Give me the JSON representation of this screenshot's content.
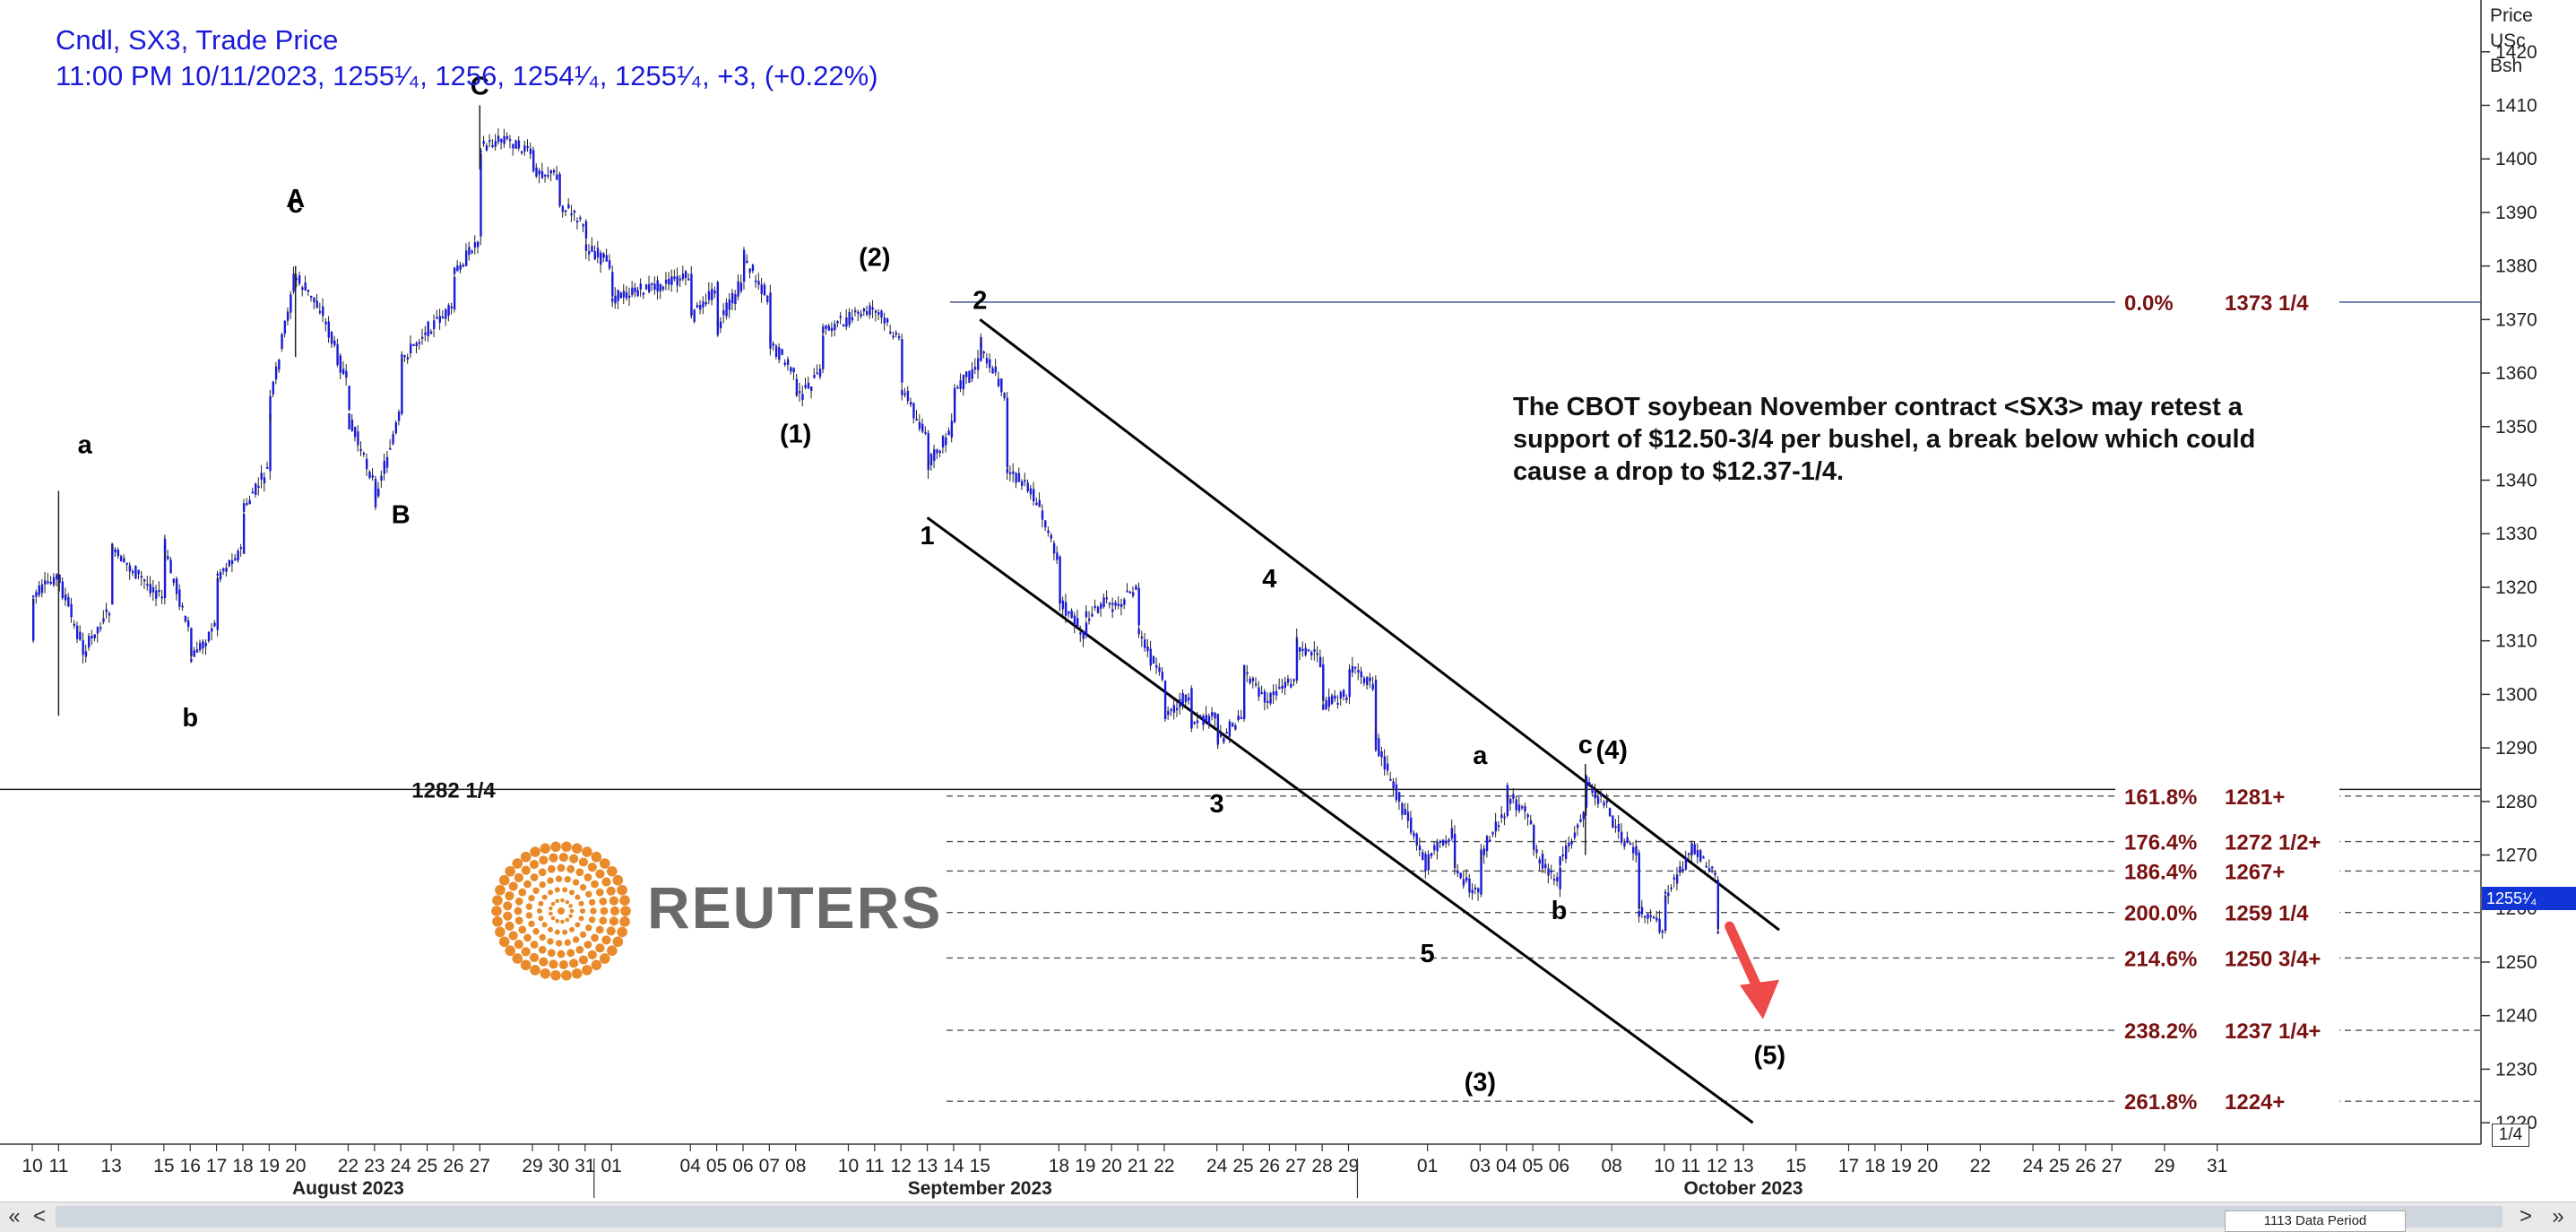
{
  "header": {
    "title": "Cndl, SX3, Trade Price",
    "ohlc_line": "11:00 PM 10/11/2023, 1255¹⁄₄, 1256, 1254¹⁄₄, 1255¹⁄₄, +3, (+0.22%)"
  },
  "note": "The CBOT soybean November contract <SX3> may retest a support of $12.50-3/4 per bushel, a break below which could cause a drop to $12.37-1/4.",
  "logo": {
    "word": "REUTERS",
    "dot_color": "#e98a2b"
  },
  "price_axis_title": [
    "Price",
    "USc",
    "Bsh"
  ],
  "current_price_label": "1255¹⁄₄",
  "zoom_label": "1/4",
  "scrollbar": {
    "first_icon": "double-left-arrow-icon",
    "first_glyph": "«",
    "left_glyph": "<",
    "right_glyph": ">",
    "last_glyph": "»",
    "periods_label": "1113 Data Period"
  },
  "colors": {
    "candle": "#1a1ad8",
    "fib": "#7a1212",
    "arrow": "#ee4a4a",
    "channel": "#000000"
  },
  "chart_data": {
    "type": "candlestick",
    "y_ticks": [
      1220,
      1230,
      1240,
      1250,
      1260,
      1270,
      1280,
      1290,
      1300,
      1310,
      1320,
      1330,
      1340,
      1350,
      1360,
      1370,
      1380,
      1390,
      1400,
      1410,
      1420
    ],
    "ylim": [
      1216,
      1428
    ],
    "x_ticks": [
      "10",
      "11",
      "13",
      "15",
      "16",
      "17",
      "18",
      "19",
      "20",
      "22",
      "23",
      "24",
      "25",
      "26",
      "27",
      "29",
      "30",
      "31",
      "01",
      "04",
      "05",
      "06",
      "07",
      "08",
      "10",
      "11",
      "12",
      "13",
      "14",
      "15",
      "18",
      "19",
      "20",
      "21",
      "22",
      "24",
      "25",
      "26",
      "27",
      "28",
      "29",
      "01",
      "03",
      "04",
      "05",
      "06",
      "08",
      "10",
      "11",
      "12",
      "13",
      "15",
      "17",
      "18",
      "19",
      "20",
      "22",
      "24",
      "25",
      "26",
      "27",
      "29",
      "31"
    ],
    "x_tick_dates": [
      "2023-07-10",
      "2023-07-11",
      "2023-07-13",
      "2023-07-15",
      "2023-07-16",
      "2023-07-17",
      "2023-07-18",
      "2023-07-19",
      "2023-07-20",
      "2023-07-22",
      "2023-07-23",
      "2023-07-24",
      "2023-07-25",
      "2023-07-26",
      "2023-07-27",
      "2023-07-29",
      "2023-07-30",
      "2023-07-31",
      "2023-08-01",
      "2023-08-04",
      "2023-08-05",
      "2023-08-06",
      "2023-08-07",
      "2023-08-08",
      "2023-08-10",
      "2023-08-11",
      "2023-08-12",
      "2023-08-13",
      "2023-08-14",
      "2023-08-15",
      "2023-08-18",
      "2023-08-19",
      "2023-08-20",
      "2023-08-21",
      "2023-08-22",
      "2023-08-24",
      "2023-08-25",
      "2023-08-26",
      "2023-08-27",
      "2023-08-28",
      "2023-08-29",
      "2023-09-01",
      "2023-09-03",
      "2023-09-04",
      "2023-09-05",
      "2023-09-06",
      "2023-09-08",
      "2023-09-10",
      "2023-09-11",
      "2023-09-12",
      "2023-09-13",
      "2023-09-15",
      "2023-09-17",
      "2023-09-18",
      "2023-09-19",
      "2023-09-20",
      "2023-09-22",
      "2023-09-24",
      "2023-09-25",
      "2023-09-26",
      "2023-09-27",
      "2023-09-29",
      "2023-09-31"
    ],
    "month_labels": [
      {
        "text": "August 2023",
        "date": "2023-07-22"
      },
      {
        "text": "September 2023",
        "date": "2023-08-15"
      },
      {
        "text": "October 2023",
        "date": "2023-09-13"
      }
    ],
    "month_dividers": [
      "2023-07-31",
      "2023-08-29"
    ],
    "price_path": [
      [
        "2023-07-10",
        1310
      ],
      [
        "2023-07-10",
        1318
      ],
      [
        "2023-07-11",
        1322
      ],
      [
        "2023-07-12",
        1308
      ],
      [
        "2023-07-13",
        1316
      ],
      [
        "2023-07-13",
        1327
      ],
      [
        "2023-07-15",
        1318
      ],
      [
        "2023-07-15",
        1328
      ],
      [
        "2023-07-16",
        1312
      ],
      [
        "2023-07-16",
        1306
      ],
      [
        "2023-07-17",
        1313
      ],
      [
        "2023-07-17",
        1322
      ],
      [
        "2023-07-18",
        1327
      ],
      [
        "2023-07-18",
        1334
      ],
      [
        "2023-07-19",
        1342
      ],
      [
        "2023-07-19",
        1352
      ],
      [
        "2023-07-20",
        1378
      ],
      [
        "2023-07-21",
        1372
      ],
      [
        "2023-07-22",
        1358
      ],
      [
        "2023-07-22",
        1352
      ],
      [
        "2023-07-23",
        1340
      ],
      [
        "2023-07-23",
        1336
      ],
      [
        "2023-07-24",
        1352
      ],
      [
        "2023-07-24",
        1362
      ],
      [
        "2023-07-25",
        1368
      ],
      [
        "2023-07-26",
        1372
      ],
      [
        "2023-07-26",
        1378
      ],
      [
        "2023-07-27",
        1385
      ],
      [
        "2023-07-27",
        1402
      ],
      [
        "2023-07-28",
        1404
      ],
      [
        "2023-07-29",
        1401
      ],
      [
        "2023-07-29",
        1398
      ],
      [
        "2023-07-30",
        1397
      ],
      [
        "2023-07-30",
        1392
      ],
      [
        "2023-07-31",
        1388
      ],
      [
        "2023-07-31",
        1384
      ],
      [
        "2023-08-01",
        1380
      ],
      [
        "2023-08-01",
        1374
      ],
      [
        "2023-08-04",
        1378
      ],
      [
        "2023-08-04",
        1370
      ],
      [
        "2023-08-05",
        1376
      ],
      [
        "2023-08-05",
        1368
      ],
      [
        "2023-08-06",
        1377
      ],
      [
        "2023-08-06",
        1382
      ],
      [
        "2023-08-07",
        1374
      ],
      [
        "2023-08-07",
        1366
      ],
      [
        "2023-08-08",
        1360
      ],
      [
        "2023-08-08",
        1355
      ],
      [
        "2023-08-09",
        1360
      ],
      [
        "2023-08-09",
        1368
      ],
      [
        "2023-08-10",
        1370
      ],
      [
        "2023-08-11",
        1372
      ],
      [
        "2023-08-12",
        1366
      ],
      [
        "2023-08-12",
        1358
      ],
      [
        "2023-08-13",
        1348
      ],
      [
        "2023-08-13",
        1342
      ],
      [
        "2023-08-14",
        1350
      ],
      [
        "2023-08-14",
        1356
      ],
      [
        "2023-08-15",
        1362
      ],
      [
        "2023-08-15",
        1366
      ],
      [
        "2023-08-16",
        1356
      ],
      [
        "2023-08-16",
        1342
      ],
      [
        "2023-08-17",
        1338
      ],
      [
        "2023-08-18",
        1326
      ],
      [
        "2023-08-18",
        1318
      ],
      [
        "2023-08-19",
        1311
      ],
      [
        "2023-08-19",
        1314
      ],
      [
        "2023-08-20",
        1318
      ],
      [
        "2023-08-20",
        1316
      ],
      [
        "2023-08-21",
        1320
      ],
      [
        "2023-08-21",
        1312
      ],
      [
        "2023-08-22",
        1302
      ],
      [
        "2023-08-22",
        1296
      ],
      [
        "2023-08-23",
        1300
      ],
      [
        "2023-08-23",
        1294
      ],
      [
        "2023-08-24",
        1296
      ],
      [
        "2023-08-24",
        1291
      ],
      [
        "2023-08-25",
        1296
      ],
      [
        "2023-08-25",
        1305
      ],
      [
        "2023-08-26",
        1298
      ],
      [
        "2023-08-26",
        1300
      ],
      [
        "2023-08-27",
        1303
      ],
      [
        "2023-08-27",
        1310
      ],
      [
        "2023-08-28",
        1306
      ],
      [
        "2023-08-28",
        1298
      ],
      [
        "2023-08-29",
        1300
      ],
      [
        "2023-08-29",
        1305
      ],
      [
        "2023-08-30",
        1302
      ],
      [
        "2023-08-30",
        1292
      ],
      [
        "2023-09-01",
        1268
      ],
      [
        "2023-09-01",
        1270
      ],
      [
        "2023-09-02",
        1274
      ],
      [
        "2023-09-02",
        1268
      ],
      [
        "2023-09-03",
        1262
      ],
      [
        "2023-09-03",
        1270
      ],
      [
        "2023-09-04",
        1278
      ],
      [
        "2023-09-04",
        1282
      ],
      [
        "2023-09-05",
        1276
      ],
      [
        "2023-09-05",
        1272
      ],
      [
        "2023-09-06",
        1264
      ],
      [
        "2023-09-06",
        1268
      ],
      [
        "2023-09-07",
        1278
      ],
      [
        "2023-09-07",
        1284
      ],
      [
        "2023-09-08",
        1278
      ],
      [
        "2023-09-08",
        1276
      ],
      [
        "2023-09-09",
        1270
      ],
      [
        "2023-09-09",
        1260
      ],
      [
        "2023-09-10",
        1256
      ],
      [
        "2023-09-10",
        1262
      ],
      [
        "2023-09-11",
        1270
      ],
      [
        "2023-09-11",
        1272
      ],
      [
        "2023-09-12",
        1266
      ],
      [
        "2023-09-12",
        1256
      ],
      [
        "2023-09-12",
        1255.25
      ]
    ],
    "price_line": {
      "value": 1282.25,
      "label": "1282 1/4"
    },
    "fib_levels": [
      {
        "value": 1373.25,
        "label": "0.0%",
        "price": "1373 1/4"
      },
      {
        "value": 1281,
        "label": "161.8%",
        "price": "1281+"
      },
      {
        "value": 1272.5,
        "label": "176.4%",
        "price": "1272 1/2+"
      },
      {
        "value": 1267,
        "label": "186.4%",
        "price": "1267+"
      },
      {
        "value": 1259.25,
        "label": "200.0%",
        "price": "1259 1/4"
      },
      {
        "value": 1250.75,
        "label": "214.6%",
        "price": "1250 3/4+"
      },
      {
        "value": 1237.25,
        "label": "238.2%",
        "price": "1237 1/4+"
      },
      {
        "value": 1224,
        "label": "261.8%",
        "price": "1224+"
      }
    ],
    "channel_lines": [
      {
        "x1": "2023-08-15",
        "y1": 1370,
        "x2": "2023-09-13",
        "y2": 1256
      },
      {
        "x1": "2023-08-13",
        "y1": 1333,
        "x2": "2023-09-12",
        "y2": 1220
      }
    ],
    "wave_labels": [
      {
        "text": "a",
        "date": "2023-07-12",
        "price": 1345
      },
      {
        "text": "b",
        "date": "2023-07-16",
        "price": 1294
      },
      {
        "text": "c",
        "date": "2023-07-20",
        "price": 1390
      },
      {
        "text": "A",
        "date": "2023-07-20",
        "price": 1391
      },
      {
        "text": "B",
        "date": "2023-07-24",
        "price": 1332
      },
      {
        "text": "C",
        "date": "2023-07-27",
        "price": 1412
      },
      {
        "text": "(1)",
        "date": "2023-08-08",
        "price": 1347
      },
      {
        "text": "(2)",
        "date": "2023-08-11",
        "price": 1380
      },
      {
        "text": "1",
        "date": "2023-08-13",
        "price": 1328
      },
      {
        "text": "2",
        "date": "2023-08-15",
        "price": 1372
      },
      {
        "text": "3",
        "date": "2023-08-24",
        "price": 1278
      },
      {
        "text": "4",
        "date": "2023-08-26",
        "price": 1320
      },
      {
        "text": "5",
        "date": "2023-09-01",
        "price": 1250
      },
      {
        "text": "(3)",
        "date": "2023-09-03",
        "price": 1226
      },
      {
        "text": "a",
        "date": "2023-09-03",
        "price": 1287
      },
      {
        "text": "b",
        "date": "2023-09-06",
        "price": 1258
      },
      {
        "text": "c",
        "date": "2023-09-07",
        "price": 1289
      },
      {
        "text": "(4)",
        "date": "2023-09-08",
        "price": 1288
      },
      {
        "text": "(5)",
        "date": "2023-09-14",
        "price": 1231
      }
    ],
    "arrow": {
      "from_date": "2023-09-12",
      "from_price": 1256,
      "to_date": "2023-09-13",
      "to_price": 1240
    }
  }
}
